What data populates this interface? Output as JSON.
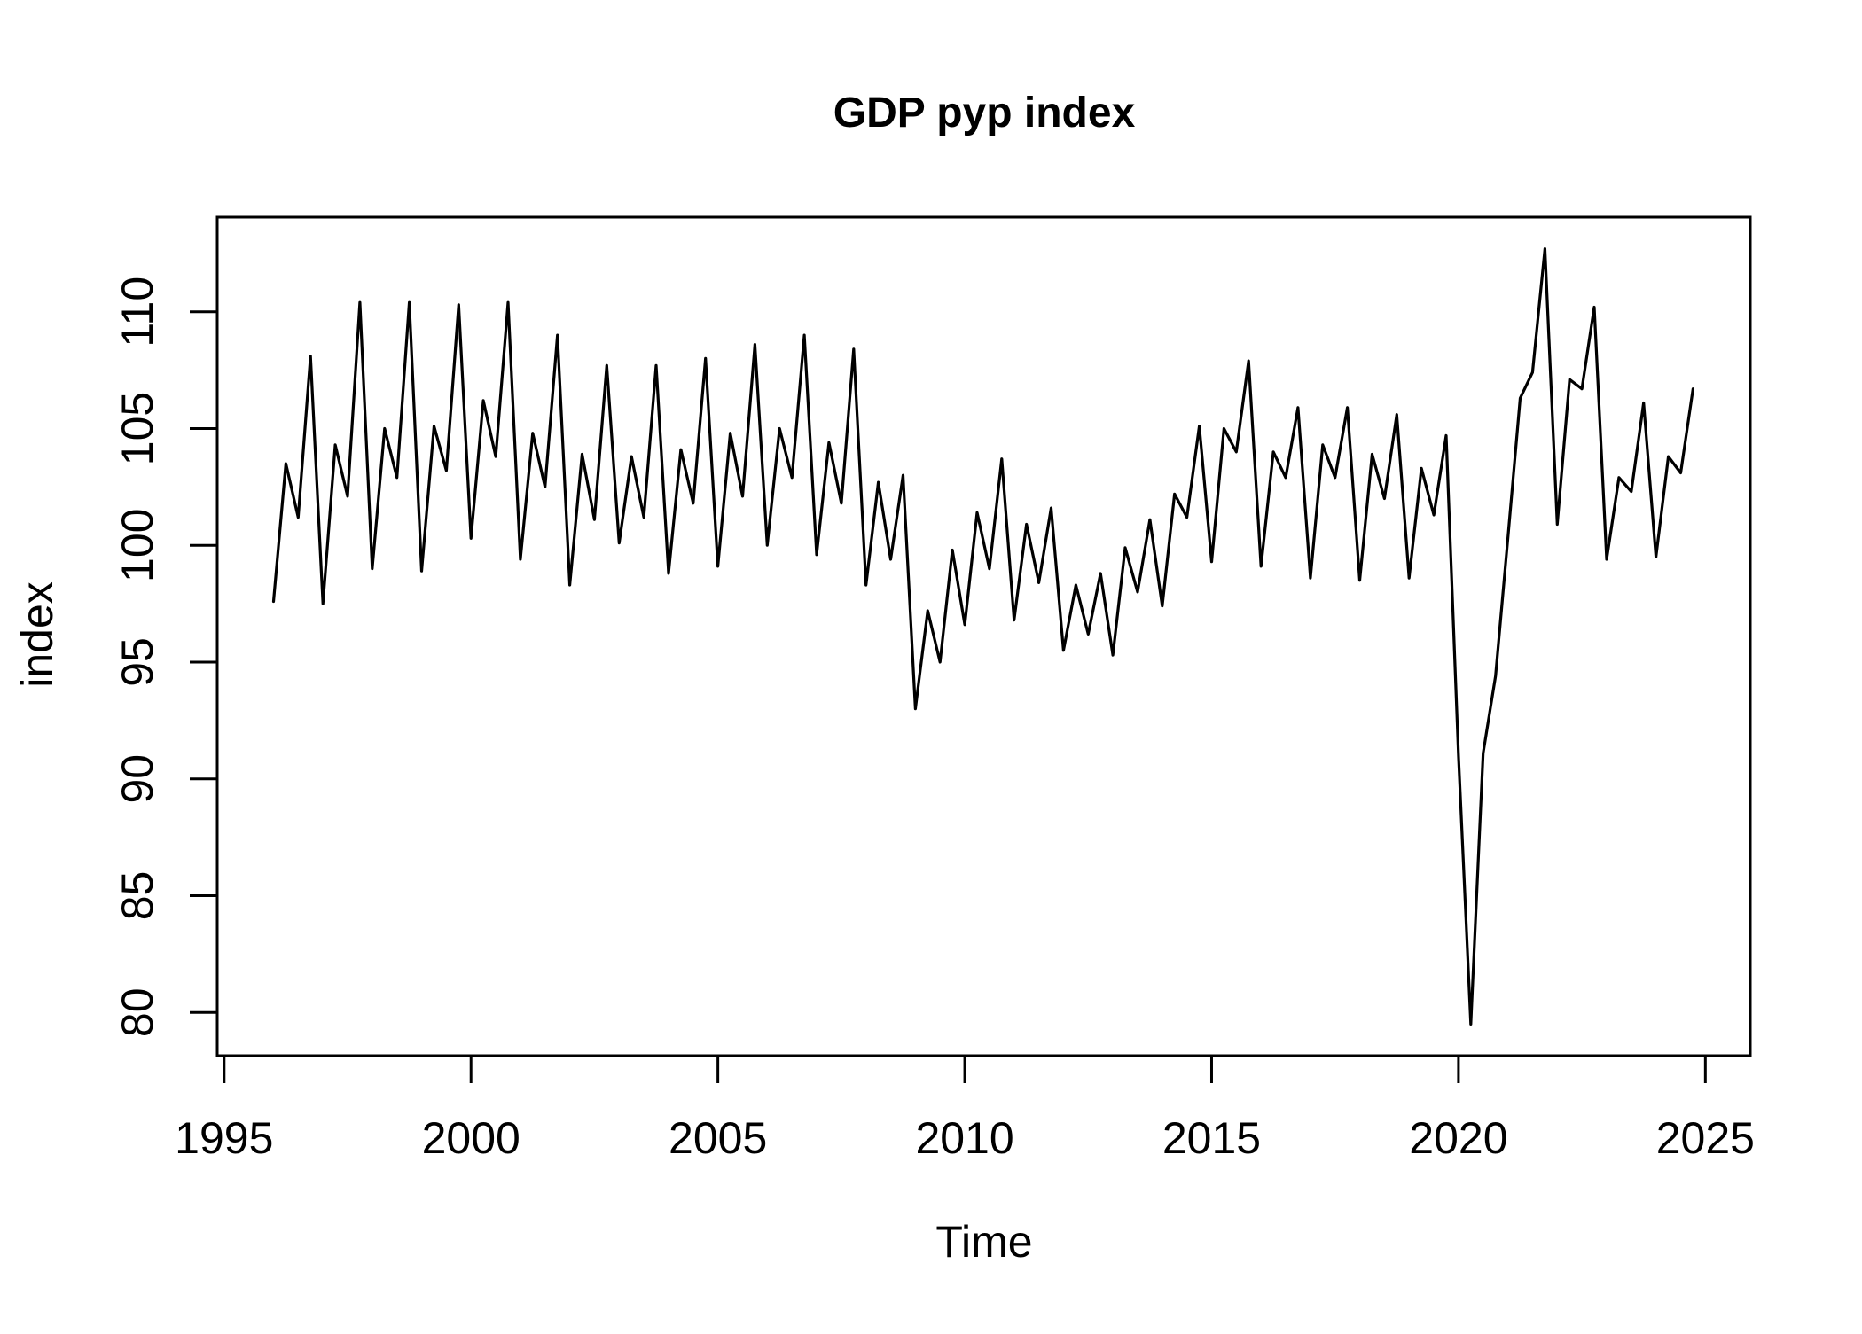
{
  "title": "GDP pyp index",
  "x_axis_label": "Time",
  "y_axis_label": "index",
  "chart_data": {
    "type": "line",
    "title": "GDP pyp index",
    "xlabel": "Time",
    "ylabel": "index",
    "frequency": "quarterly",
    "x_start": 1996.0,
    "x_step": 0.25,
    "x_end": 2024.75,
    "xlim": [
      1994.86,
      2025.91
    ],
    "ylim": [
      78.15,
      114.05
    ],
    "x_ticks": [
      1995,
      2000,
      2005,
      2010,
      2015,
      2020,
      2025
    ],
    "y_ticks": [
      80,
      85,
      90,
      95,
      100,
      105,
      110
    ],
    "grid": false,
    "legend": "none",
    "line_color": "#000000",
    "background_color": "#ffffff",
    "values": [
      97.6,
      103.5,
      101.2,
      108.1,
      97.5,
      104.3,
      102.1,
      110.4,
      99.0,
      105.0,
      102.9,
      110.4,
      98.9,
      105.1,
      103.2,
      110.3,
      100.3,
      106.2,
      103.8,
      110.4,
      99.4,
      104.8,
      102.5,
      109.0,
      98.3,
      103.9,
      101.1,
      107.7,
      100.1,
      103.8,
      101.2,
      107.7,
      98.8,
      104.1,
      101.8,
      108.0,
      99.1,
      104.8,
      102.1,
      108.6,
      100.0,
      105.0,
      102.9,
      109.0,
      99.6,
      104.4,
      101.8,
      108.4,
      98.3,
      102.7,
      99.4,
      103.0,
      93.0,
      97.2,
      95.0,
      99.8,
      96.6,
      101.4,
      99.0,
      103.7,
      96.8,
      100.9,
      98.4,
      101.6,
      95.5,
      98.3,
      96.2,
      98.8,
      95.3,
      99.9,
      98.0,
      101.1,
      97.4,
      102.2,
      101.2,
      105.1,
      99.3,
      105.0,
      104.0,
      107.9,
      99.1,
      104.0,
      102.9,
      105.9,
      98.6,
      104.3,
      102.9,
      105.9,
      98.5,
      103.9,
      102.0,
      105.6,
      98.6,
      103.3,
      101.3,
      104.7,
      91.0,
      79.5,
      91.1,
      94.4,
      100.3,
      106.3,
      107.4,
      112.7,
      100.9,
      107.1,
      106.7,
      110.2,
      99.4,
      102.9,
      102.3,
      106.1,
      99.5,
      103.8,
      103.1,
      106.7
    ]
  }
}
